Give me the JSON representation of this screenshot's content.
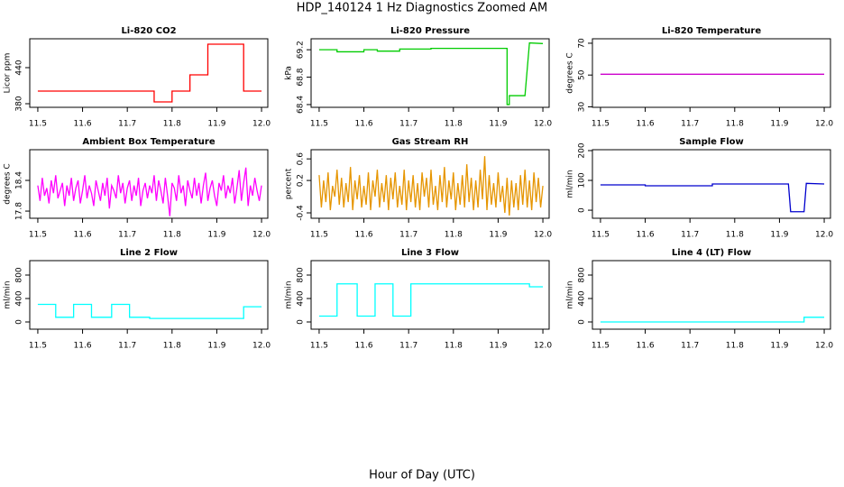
{
  "title": "HDP_140124  1 Hz Diagnostics Zoomed AM",
  "xlabel": "Hour of Day (UTC)",
  "chart_data": [
    {
      "type": "line",
      "title": "Li-820 CO2",
      "ylabel": "Licor ppm",
      "color": "#ff0000",
      "x": [
        11.5,
        11.76,
        11.76,
        11.8,
        11.8,
        11.84,
        11.84,
        11.88,
        11.88,
        11.96,
        11.96,
        12.0
      ],
      "values": [
        401,
        401,
        383,
        383,
        401,
        401,
        428,
        428,
        479,
        479,
        401,
        401
      ],
      "xlim": [
        11.482,
        12.014
      ],
      "xticks": [
        11.5,
        11.6,
        11.7,
        11.8,
        11.9,
        {
          "value": 12,
          "label": "12.0"
        }
      ],
      "ylim": [
        374,
        488
      ],
      "yticks": [
        380,
        440
      ]
    },
    {
      "type": "line",
      "title": "Li-820 Pressure",
      "ylabel": "kPa",
      "color": "#00cc00",
      "x": [
        11.5,
        11.54,
        11.54,
        11.6,
        11.6,
        11.63,
        11.63,
        11.68,
        11.68,
        11.75,
        11.75,
        11.92,
        11.92,
        11.925,
        11.925,
        11.96,
        11.97,
        12.0
      ],
      "values": [
        69.2,
        69.2,
        69.17,
        69.17,
        69.2,
        69.2,
        69.18,
        69.18,
        69.21,
        69.21,
        69.22,
        69.22,
        68.4,
        68.4,
        68.53,
        68.53,
        69.3,
        69.29
      ],
      "xlim": [
        11.482,
        12.014
      ],
      "xticks": [
        11.5,
        11.6,
        11.7,
        11.8,
        11.9,
        {
          "value": 12,
          "label": "12.0"
        }
      ],
      "ylim": [
        68.36,
        69.36
      ],
      "yticks": [
        68.4,
        68.8,
        69.2
      ]
    },
    {
      "type": "line",
      "title": "Li-820 Temperature",
      "ylabel": "degrees C",
      "color": "#cc00cc",
      "x": [
        11.5,
        12.0
      ],
      "values": [
        50.5,
        50.5
      ],
      "xlim": [
        11.482,
        12.014
      ],
      "xticks": [
        11.5,
        11.6,
        11.7,
        11.8,
        11.9,
        {
          "value": 12,
          "label": "12.0"
        }
      ],
      "ylim": [
        29.7,
        72.8
      ],
      "yticks": [
        30,
        50,
        70
      ]
    },
    {
      "type": "line",
      "title": "Ambient Box Temperature",
      "ylabel": "degrees C",
      "color": "#ff00ff",
      "x": [
        11.5,
        11.505,
        11.51,
        11.515,
        11.52,
        11.525,
        11.53,
        11.535,
        11.54,
        11.545,
        11.55,
        11.555,
        11.56,
        11.565,
        11.57,
        11.575,
        11.58,
        11.585,
        11.59,
        11.595,
        11.6,
        11.605,
        11.61,
        11.615,
        11.62,
        11.625,
        11.63,
        11.635,
        11.64,
        11.645,
        11.65,
        11.655,
        11.66,
        11.665,
        11.67,
        11.675,
        11.68,
        11.685,
        11.69,
        11.695,
        11.7,
        11.705,
        11.71,
        11.715,
        11.72,
        11.725,
        11.73,
        11.735,
        11.74,
        11.745,
        11.75,
        11.755,
        11.76,
        11.765,
        11.77,
        11.775,
        11.78,
        11.785,
        11.79,
        11.795,
        11.8,
        11.805,
        11.81,
        11.815,
        11.82,
        11.825,
        11.83,
        11.835,
        11.84,
        11.845,
        11.85,
        11.855,
        11.86,
        11.865,
        11.87,
        11.875,
        11.88,
        11.885,
        11.89,
        11.895,
        11.9,
        11.905,
        11.91,
        11.915,
        11.92,
        11.925,
        11.93,
        11.935,
        11.94,
        11.945,
        11.95,
        11.955,
        11.96,
        11.965,
        11.97,
        11.975,
        11.98,
        11.985,
        11.99,
        11.995,
        12.0
      ],
      "values": [
        18.3,
        18.0,
        18.45,
        18.1,
        18.25,
        17.95,
        18.4,
        18.15,
        18.5,
        18.05,
        18.2,
        18.35,
        17.9,
        18.3,
        18.1,
        18.45,
        18.0,
        18.25,
        18.4,
        17.95,
        18.2,
        18.5,
        18.05,
        18.3,
        18.15,
        17.9,
        18.4,
        18.2,
        18.0,
        18.35,
        18.1,
        18.45,
        17.85,
        18.3,
        18.2,
        18.05,
        18.5,
        18.15,
        18.35,
        17.95,
        18.25,
        18.4,
        18.0,
        18.3,
        18.1,
        18.45,
        17.9,
        18.2,
        18.35,
        18.05,
        18.3,
        18.15,
        18.5,
        18.0,
        18.4,
        18.2,
        17.95,
        18.45,
        18.1,
        17.7,
        18.35,
        18.25,
        18.0,
        18.5,
        18.15,
        18.3,
        17.9,
        18.4,
        18.2,
        18.05,
        18.45,
        18.1,
        18.35,
        17.95,
        18.3,
        18.55,
        18.0,
        18.25,
        18.4,
        18.1,
        17.9,
        18.35,
        18.2,
        18.5,
        18.05,
        18.3,
        18.15,
        18.45,
        17.95,
        18.25,
        18.6,
        18.0,
        18.35,
        18.65,
        17.9,
        18.3,
        18.1,
        18.45,
        18.2,
        18.0,
        18.3
      ],
      "xlim": [
        11.482,
        12.014
      ],
      "xticks": [
        11.5,
        11.6,
        11.7,
        11.8,
        11.9,
        {
          "value": 12,
          "label": "12.0"
        }
      ],
      "ylim": [
        17.66,
        19.0
      ],
      "yticks": [
        17.8,
        18.4
      ]
    },
    {
      "type": "line",
      "title": "Gas Stream RH",
      "ylabel": "percent",
      "color": "#e69500",
      "x": [
        11.5,
        11.505,
        11.51,
        11.515,
        11.52,
        11.525,
        11.53,
        11.535,
        11.54,
        11.545,
        11.55,
        11.555,
        11.56,
        11.565,
        11.57,
        11.575,
        11.58,
        11.585,
        11.59,
        11.595,
        11.6,
        11.605,
        11.61,
        11.615,
        11.62,
        11.625,
        11.63,
        11.635,
        11.64,
        11.645,
        11.65,
        11.655,
        11.66,
        11.665,
        11.67,
        11.675,
        11.68,
        11.685,
        11.69,
        11.695,
        11.7,
        11.705,
        11.71,
        11.715,
        11.72,
        11.725,
        11.73,
        11.735,
        11.74,
        11.745,
        11.75,
        11.755,
        11.76,
        11.765,
        11.77,
        11.775,
        11.78,
        11.785,
        11.79,
        11.795,
        11.8,
        11.805,
        11.81,
        11.815,
        11.82,
        11.825,
        11.83,
        11.835,
        11.84,
        11.845,
        11.85,
        11.855,
        11.86,
        11.865,
        11.87,
        11.875,
        11.88,
        11.885,
        11.89,
        11.895,
        11.9,
        11.905,
        11.91,
        11.915,
        11.92,
        11.925,
        11.93,
        11.935,
        11.94,
        11.945,
        11.95,
        11.955,
        11.96,
        11.965,
        11.97,
        11.975,
        11.98,
        11.985,
        11.99,
        11.995,
        12.0
      ],
      "values": [
        0.3,
        -0.3,
        0.2,
        -0.2,
        0.35,
        -0.35,
        0.1,
        -0.1,
        0.4,
        -0.25,
        0.25,
        -0.3,
        0.15,
        -0.2,
        0.45,
        -0.35,
        0.2,
        -0.15,
        0.3,
        -0.3,
        0.1,
        -0.25,
        0.35,
        -0.35,
        0.2,
        -0.1,
        0.4,
        -0.3,
        0.15,
        -0.2,
        0.3,
        -0.35,
        0.25,
        -0.15,
        0.35,
        -0.3,
        0.1,
        -0.25,
        0.4,
        -0.35,
        0.2,
        -0.2,
        0.3,
        -0.3,
        0.15,
        -0.35,
        0.35,
        -0.1,
        0.25,
        -0.3,
        0.4,
        -0.25,
        0.1,
        -0.35,
        0.3,
        -0.2,
        0.45,
        -0.3,
        0.2,
        -0.15,
        0.35,
        -0.35,
        0.15,
        -0.25,
        0.3,
        -0.3,
        0.5,
        -0.2,
        0.25,
        -0.35,
        0.2,
        -0.3,
        0.4,
        -0.15,
        0.65,
        -0.35,
        0.3,
        -0.25,
        0.15,
        -0.3,
        0.35,
        -0.2,
        0.1,
        -0.4,
        0.25,
        -0.45,
        0.2,
        -0.3,
        0.15,
        -0.35,
        0.3,
        -0.25,
        0.4,
        -0.3,
        0.2,
        -0.35,
        0.35,
        -0.2,
        0.25,
        -0.3,
        0.1
      ],
      "xlim": [
        11.482,
        12.014
      ],
      "xticks": [
        11.5,
        11.6,
        11.7,
        11.8,
        11.9,
        {
          "value": 12,
          "label": "12.0"
        }
      ],
      "ylim": [
        -0.5,
        0.77
      ],
      "yticks": [
        -0.4,
        0.2,
        0.6
      ]
    },
    {
      "type": "line",
      "title": "Sample Flow",
      "ylabel": "ml/min",
      "color": "#0000cd",
      "x": [
        11.5,
        11.6,
        11.6,
        11.75,
        11.75,
        11.92,
        11.925,
        11.955,
        11.96,
        12.0
      ],
      "values": [
        85,
        85,
        82,
        82,
        88,
        88,
        -5,
        -5,
        90,
        88
      ],
      "xlim": [
        11.482,
        12.014
      ],
      "xticks": [
        11.5,
        11.6,
        11.7,
        11.8,
        11.9,
        {
          "value": 12,
          "label": "12.0"
        }
      ],
      "ylim": [
        -27,
        203
      ],
      "yticks": [
        0,
        100,
        200
      ]
    },
    {
      "type": "line",
      "title": "Line 2 Flow",
      "ylabel": "ml/min",
      "color": "#00ffff",
      "x": [
        11.5,
        11.54,
        11.54,
        11.58,
        11.58,
        11.62,
        11.62,
        11.665,
        11.665,
        11.705,
        11.705,
        11.75,
        11.75,
        11.96,
        11.96,
        12.0
      ],
      "values": [
        300,
        300,
        80,
        80,
        300,
        300,
        80,
        80,
        300,
        300,
        80,
        80,
        60,
        60,
        260,
        260
      ],
      "xlim": [
        11.482,
        12.014
      ],
      "xticks": [
        11.5,
        11.6,
        11.7,
        11.8,
        11.9,
        {
          "value": 12,
          "label": "12.0"
        }
      ],
      "ylim": [
        -123,
        1046
      ],
      "yticks": [
        0,
        400,
        800
      ]
    },
    {
      "type": "line",
      "title": "Line 3 Flow",
      "ylabel": "ml/min",
      "color": "#00ffff",
      "x": [
        11.5,
        11.54,
        11.54,
        11.585,
        11.585,
        11.625,
        11.625,
        11.665,
        11.665,
        11.705,
        11.705,
        11.97,
        11.97,
        12.0
      ],
      "values": [
        100,
        100,
        650,
        650,
        100,
        100,
        650,
        650,
        100,
        100,
        650,
        650,
        600,
        600
      ],
      "xlim": [
        11.482,
        12.014
      ],
      "xticks": [
        11.5,
        11.6,
        11.7,
        11.8,
        11.9,
        {
          "value": 12,
          "label": "12.0"
        }
      ],
      "ylim": [
        -123,
        1046
      ],
      "yticks": [
        0,
        400,
        800
      ]
    },
    {
      "type": "line",
      "title": "Line 4 (LT) Flow",
      "ylabel": "ml/min",
      "color": "#00ffff",
      "x": [
        11.5,
        11.955,
        11.955,
        12.0
      ],
      "values": [
        0,
        0,
        80,
        80
      ],
      "xlim": [
        11.482,
        12.014
      ],
      "xticks": [
        11.5,
        11.6,
        11.7,
        11.8,
        11.9,
        {
          "value": 12,
          "label": "12.0"
        }
      ],
      "ylim": [
        -123,
        1046
      ],
      "yticks": [
        0,
        400,
        800
      ]
    }
  ]
}
